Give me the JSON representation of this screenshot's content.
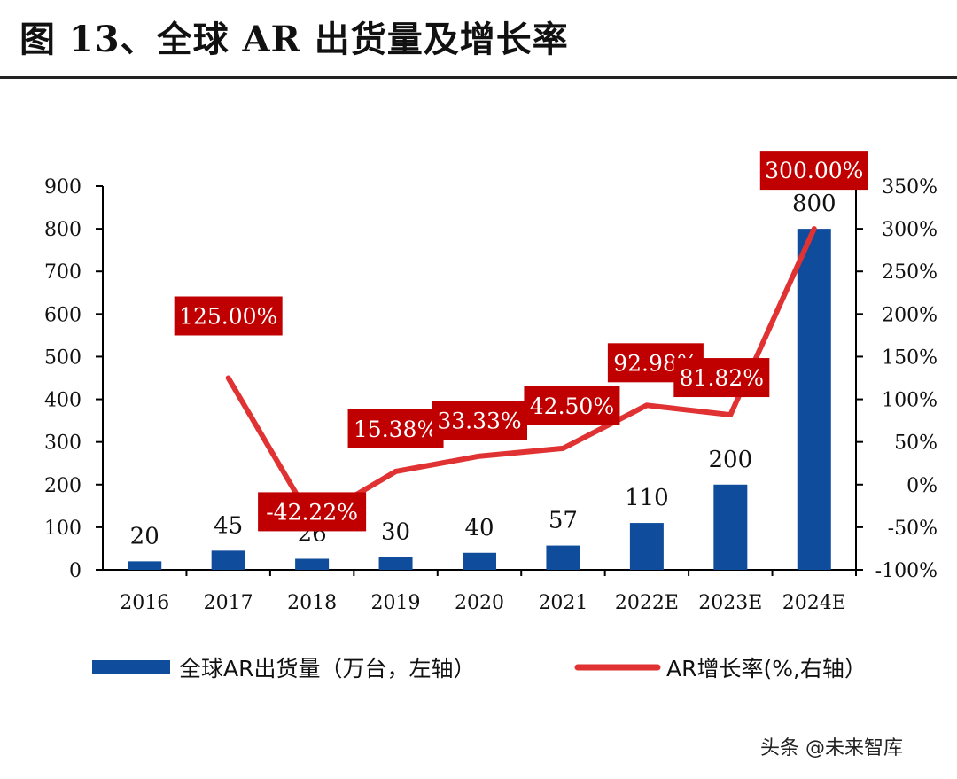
{
  "title": "图 13、全球 AR 出货量及增长率",
  "watermark": "头条 @未来智库",
  "colors": {
    "bar": "#0f4c9c",
    "line": "#e03232",
    "label_box": "#c00000",
    "label_text": "#ffffff",
    "axis": "#000000"
  },
  "chart_data": {
    "type": "bar",
    "categories": [
      "2016",
      "2017",
      "2018",
      "2019",
      "2020",
      "2021",
      "2022E",
      "2023E",
      "2024E"
    ],
    "series": [
      {
        "name": "全球AR出货量（万台，左轴）",
        "type": "bar",
        "axis": "left",
        "values": [
          20,
          45,
          26,
          30,
          40,
          57,
          110,
          200,
          800
        ],
        "data_labels": [
          "20",
          "45",
          "26",
          "30",
          "40",
          "57",
          "110",
          "200",
          "800"
        ]
      },
      {
        "name": "AR增长率(%,右轴）",
        "type": "line",
        "axis": "right",
        "values": [
          null,
          125.0,
          -42.22,
          15.38,
          33.33,
          42.5,
          92.98,
          81.82,
          300.0
        ],
        "data_labels": [
          "",
          "125.00%",
          "-42.22%",
          "15.38%",
          "33.33%",
          "42.50%",
          "92.98%",
          "81.82%",
          "300.00%"
        ]
      }
    ],
    "y_left": {
      "ylim": [
        0,
        900
      ],
      "ticks": [
        "0",
        "100",
        "200",
        "300",
        "400",
        "500",
        "600",
        "700",
        "800",
        "900"
      ]
    },
    "y_right": {
      "ylim": [
        -100,
        350
      ],
      "ticks": [
        "-100%",
        "-50%",
        "0%",
        "50%",
        "100%",
        "150%",
        "200%",
        "250%",
        "300%",
        "350%"
      ]
    },
    "legend": {
      "placement": "bottom",
      "items": [
        "全球AR出货量（万台，左轴）",
        "AR增长率(%,右轴）"
      ]
    },
    "grid": false
  }
}
